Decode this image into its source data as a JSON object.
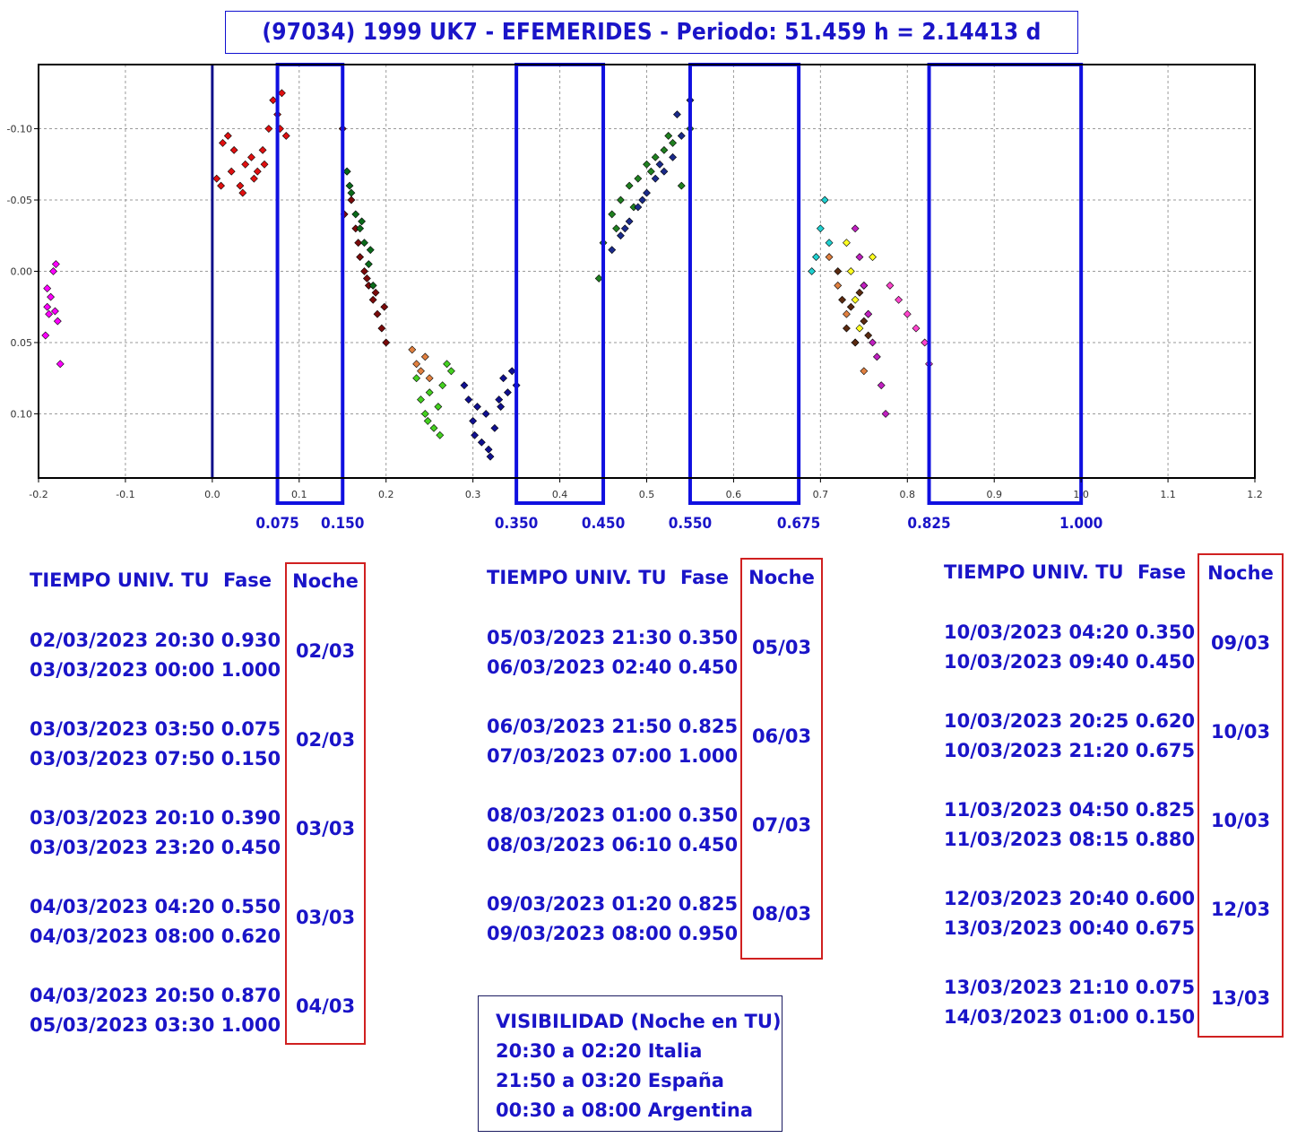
{
  "title": "(97034) 1999 UK7 - EFEMERIDES - Periodo: 51.459 h = 2.14413 d",
  "chart_data": {
    "type": "scatter",
    "title": "(97034) 1999 UK7 - EFEMERIDES - Periodo: 51.459 h = 2.14413 d",
    "xlabel": "",
    "ylabel": "",
    "xlim": [
      -0.2,
      1.2
    ],
    "ylim": [
      0.145,
      -0.145
    ],
    "y_inverted": true,
    "grid": true,
    "x_ticks": [
      -0.2,
      -0.1,
      0.0,
      0.1,
      0.2,
      0.3,
      0.4,
      0.5,
      0.6,
      0.7,
      0.8,
      0.9,
      1.0,
      1.1,
      1.2
    ],
    "x_tick_labels": [
      "-0.2",
      "-0.1",
      "0.0",
      "0.1",
      "0.2",
      "0.3",
      "0.4",
      "0.5",
      "0.6",
      "0.7",
      "0.8",
      "0.9",
      "1.0",
      "1.1",
      "1.2"
    ],
    "y_ticks": [
      -0.1,
      -0.05,
      0.0,
      0.05,
      0.1
    ],
    "y_tick_labels": [
      "-0.10",
      "-0.05",
      "0.00",
      "0.05",
      "0.10"
    ],
    "phase_windows": [
      {
        "start": 0.075,
        "end": 0.15,
        "start_label": "0.075",
        "end_label": "0.150"
      },
      {
        "start": 0.35,
        "end": 0.45,
        "start_label": "0.350",
        "end_label": "0.450"
      },
      {
        "start": 0.55,
        "end": 0.675,
        "start_label": "0.550",
        "end_label": "0.675"
      },
      {
        "start": 0.825,
        "end": 1.0,
        "start_label": "0.825",
        "end_label": "1.000"
      }
    ],
    "vertical_lines": [
      0.0,
      1.0
    ],
    "series": [
      {
        "color": "#ff00ff",
        "x": [
          -0.19,
          -0.188,
          -0.183,
          -0.18,
          -0.175,
          -0.192,
          -0.186,
          -0.178,
          -0.19,
          -0.181
        ],
        "y": [
          0.025,
          0.03,
          0.0,
          -0.005,
          0.065,
          0.045,
          0.018,
          0.035,
          0.012,
          0.028
        ]
      },
      {
        "color": "#e01010",
        "x": [
          0.005,
          0.012,
          0.018,
          0.025,
          0.032,
          0.038,
          0.045,
          0.052,
          0.058,
          0.065,
          0.01,
          0.022,
          0.035,
          0.048,
          0.06,
          0.07,
          0.075,
          0.08,
          0.085,
          0.078
        ],
        "y": [
          -0.065,
          -0.09,
          -0.095,
          -0.085,
          -0.06,
          -0.075,
          -0.08,
          -0.07,
          -0.085,
          -0.1,
          -0.06,
          -0.07,
          -0.055,
          -0.065,
          -0.075,
          -0.12,
          -0.11,
          -0.125,
          -0.095,
          -0.1
        ]
      },
      {
        "color": "#7a0a0a",
        "x": [
          0.15,
          0.155,
          0.16,
          0.165,
          0.17,
          0.175,
          0.18,
          0.185,
          0.19,
          0.195,
          0.2,
          0.152,
          0.168,
          0.178,
          0.188,
          0.198
        ],
        "y": [
          -0.1,
          -0.07,
          -0.05,
          -0.03,
          -0.01,
          0.0,
          0.01,
          0.02,
          0.03,
          0.04,
          0.05,
          -0.04,
          -0.02,
          0.005,
          0.015,
          0.025
        ]
      },
      {
        "color": "#0a6a1a",
        "x": [
          0.155,
          0.16,
          0.165,
          0.17,
          0.175,
          0.18,
          0.185,
          0.158,
          0.172,
          0.182
        ],
        "y": [
          -0.07,
          -0.055,
          -0.04,
          -0.03,
          -0.02,
          -0.005,
          0.01,
          -0.06,
          -0.035,
          -0.015
        ]
      },
      {
        "color": "#e08040",
        "x": [
          0.23,
          0.235,
          0.24,
          0.245,
          0.25
        ],
        "y": [
          0.055,
          0.065,
          0.07,
          0.06,
          0.075
        ]
      },
      {
        "color": "#44d020",
        "x": [
          0.235,
          0.24,
          0.245,
          0.25,
          0.255,
          0.26,
          0.265,
          0.27,
          0.275,
          0.248,
          0.262
        ],
        "y": [
          0.075,
          0.09,
          0.1,
          0.085,
          0.11,
          0.095,
          0.08,
          0.065,
          0.07,
          0.105,
          0.115
        ]
      },
      {
        "color": "#101090",
        "x": [
          0.29,
          0.295,
          0.3,
          0.305,
          0.31,
          0.315,
          0.32,
          0.325,
          0.33,
          0.335,
          0.34,
          0.345,
          0.35,
          0.302,
          0.318,
          0.332
        ],
        "y": [
          0.08,
          0.09,
          0.105,
          0.095,
          0.12,
          0.1,
          0.13,
          0.11,
          0.09,
          0.075,
          0.085,
          0.07,
          0.08,
          0.115,
          0.125,
          0.095
        ]
      },
      {
        "color": "#208020",
        "x": [
          0.445,
          0.45,
          0.46,
          0.47,
          0.48,
          0.49,
          0.5,
          0.51,
          0.52,
          0.53,
          0.54,
          0.55,
          0.465,
          0.485,
          0.505,
          0.525
        ],
        "y": [
          0.005,
          -0.02,
          -0.04,
          -0.05,
          -0.06,
          -0.065,
          -0.075,
          -0.08,
          -0.085,
          -0.09,
          -0.06,
          -0.1,
          -0.03,
          -0.045,
          -0.07,
          -0.095
        ]
      },
      {
        "color": "#1a2a8a",
        "x": [
          0.46,
          0.47,
          0.48,
          0.49,
          0.5,
          0.51,
          0.52,
          0.53,
          0.54,
          0.55,
          0.475,
          0.495,
          0.515,
          0.535
        ],
        "y": [
          -0.015,
          -0.025,
          -0.035,
          -0.045,
          -0.055,
          -0.065,
          -0.07,
          -0.08,
          -0.095,
          -0.12,
          -0.03,
          -0.05,
          -0.075,
          -0.11
        ]
      },
      {
        "color": "#20d0d0",
        "x": [
          0.69,
          0.695,
          0.7,
          0.705,
          0.71
        ],
        "y": [
          0.0,
          -0.01,
          -0.03,
          -0.05,
          -0.02
        ]
      },
      {
        "color": "#e08040",
        "x": [
          0.71,
          0.72,
          0.73,
          0.74,
          0.75
        ],
        "y": [
          -0.01,
          0.01,
          0.03,
          0.05,
          0.07
        ]
      },
      {
        "color": "#5a2a10",
        "x": [
          0.72,
          0.725,
          0.73,
          0.735,
          0.74,
          0.745,
          0.75,
          0.755
        ],
        "y": [
          0.0,
          0.02,
          0.04,
          0.025,
          0.05,
          0.015,
          0.035,
          0.045
        ]
      },
      {
        "color": "#ffff20",
        "x": [
          0.73,
          0.735,
          0.74,
          0.745,
          0.75,
          0.755,
          0.76
        ],
        "y": [
          -0.02,
          0.0,
          0.02,
          0.04,
          0.01,
          0.03,
          -0.01
        ]
      },
      {
        "color": "#c020c0",
        "x": [
          0.74,
          0.745,
          0.75,
          0.755,
          0.76,
          0.765,
          0.77,
          0.775
        ],
        "y": [
          -0.03,
          -0.01,
          0.01,
          0.03,
          0.05,
          0.06,
          0.08,
          0.1
        ]
      },
      {
        "color": "#ff44cc",
        "x": [
          0.78,
          0.79,
          0.8,
          0.81,
          0.82,
          0.825
        ],
        "y": [
          0.01,
          0.02,
          0.03,
          0.04,
          0.05,
          0.065
        ]
      }
    ]
  },
  "columns": [
    {
      "header_time": "TIEMPO UNIV. TU",
      "header_fase": "Fase",
      "header_noche": "Noche",
      "rows": [
        {
          "lines": [
            "02/03/2023  20:30 0.930",
            "03/03/2023  00:00 1.000"
          ],
          "noche": "02/03"
        },
        {
          "lines": [
            "03/03/2023  03:50 0.075",
            "03/03/2023  07:50 0.150"
          ],
          "noche": "02/03"
        },
        {
          "lines": [
            "03/03/2023  20:10 0.390",
            "03/03/2023  23:20 0.450"
          ],
          "noche": "03/03"
        },
        {
          "lines": [
            "04/03/2023  04:20 0.550",
            "04/03/2023  08:00 0.620"
          ],
          "noche": "03/03"
        },
        {
          "lines": [
            "04/03/2023  20:50 0.870",
            "05/03/2023  03:30 1.000"
          ],
          "noche": "04/03"
        }
      ]
    },
    {
      "header_time": "TIEMPO UNIV. TU",
      "header_fase": "Fase",
      "header_noche": "Noche",
      "rows": [
        {
          "lines": [
            "05/03/2023  21:30 0.350",
            "06/03/2023  02:40 0.450"
          ],
          "noche": "05/03"
        },
        {
          "lines": [
            "06/03/2023  21:50 0.825",
            "07/03/2023  07:00 1.000"
          ],
          "noche": "06/03"
        },
        {
          "lines": [
            "08/03/2023  01:00 0.350",
            "08/03/2023  06:10 0.450"
          ],
          "noche": "07/03"
        },
        {
          "lines": [
            "09/03/2023  01:20 0.825",
            "09/03/2023  08:00 0.950"
          ],
          "noche": "08/03"
        }
      ]
    },
    {
      "header_time": "TIEMPO UNIV. TU",
      "header_fase": "Fase",
      "header_noche": "Noche",
      "rows": [
        {
          "lines": [
            "10/03/2023  04:20 0.350",
            "10/03/2023  09:40 0.450"
          ],
          "noche": "09/03"
        },
        {
          "lines": [
            "10/03/2023  20:25 0.620",
            "10/03/2023  21:20 0.675"
          ],
          "noche": "10/03"
        },
        {
          "lines": [
            "11/03/2023  04:50 0.825",
            "11/03/2023  08:15 0.880"
          ],
          "noche": "10/03"
        },
        {
          "lines": [
            "12/03/2023  20:40 0.600",
            "13/03/2023  00:40 0.675"
          ],
          "noche": "12/03"
        },
        {
          "lines": [
            "13/03/2023  21:10 0.075",
            "14/03/2023  01:00 0.150"
          ],
          "noche": "13/03"
        }
      ]
    }
  ],
  "visibility": {
    "title": "VISIBILIDAD (Noche en TU)",
    "lines": [
      "20:30 a 02:20 Italia",
      "21:50 a 03:20 España",
      "00:30 a 08:00 Argentina"
    ]
  }
}
